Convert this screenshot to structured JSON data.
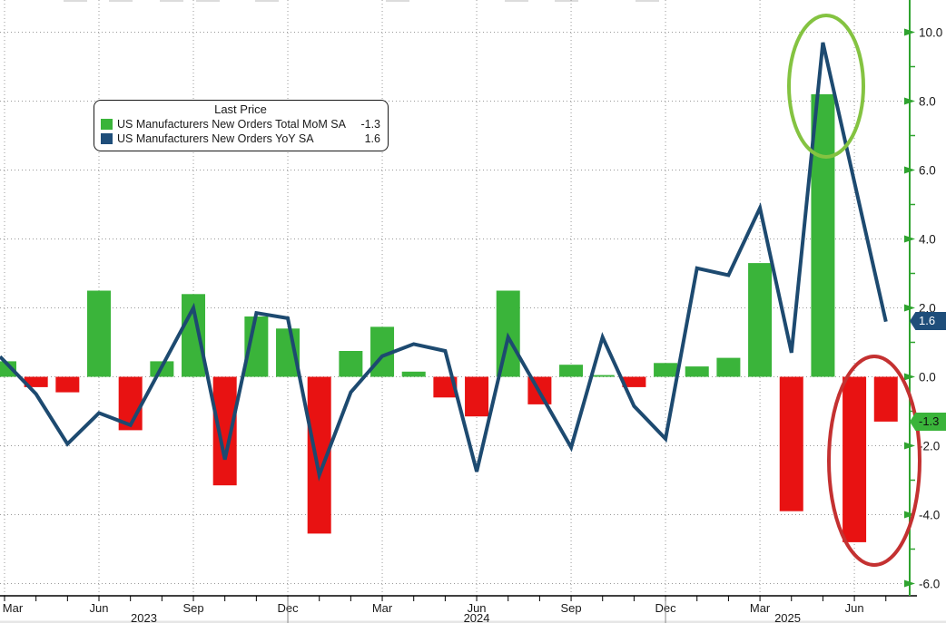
{
  "chart_data": {
    "type": "bar+line",
    "title": "",
    "months": [
      "Mar 2023",
      "Apr 2023",
      "May 2023",
      "Jun 2023",
      "Jul 2023",
      "Aug 2023",
      "Sep 2023",
      "Oct 2023",
      "Nov 2023",
      "Dec 2023",
      "Jan 2024",
      "Feb 2024",
      "Mar 2024",
      "Apr 2024",
      "May 2024",
      "Jun 2024",
      "Jul 2024",
      "Aug 2024",
      "Sep 2024",
      "Oct 2024",
      "Nov 2024",
      "Dec 2024",
      "Jan 2025",
      "Feb 2025",
      "Mar 2025",
      "Apr 2025",
      "May 2025",
      "Jun 2025",
      "Jul 2025"
    ],
    "series": [
      {
        "name": "US Manufacturers New Orders Total MoM SA",
        "type": "bar",
        "last_price": -1.3,
        "color_positive": "#3ab43a",
        "color_negative": "#e81212",
        "values": [
          0.45,
          -0.3,
          -0.45,
          2.5,
          -1.55,
          0.45,
          2.4,
          -3.15,
          1.75,
          1.4,
          -4.55,
          0.75,
          1.45,
          0.15,
          -0.6,
          -1.15,
          2.5,
          -0.8,
          0.35,
          0.05,
          -0.3,
          0.4,
          0.3,
          0.55,
          3.3,
          -3.9,
          8.2,
          -4.8,
          -1.3
        ]
      },
      {
        "name": "US Manufacturers New Orders YoY SA",
        "type": "line",
        "last_price": 1.6,
        "color": "#1d4a70",
        "values": [
          0.45,
          -0.5,
          -1.95,
          -1.05,
          -1.4,
          0.3,
          2.0,
          -2.4,
          1.85,
          1.7,
          -2.85,
          -0.45,
          0.6,
          0.95,
          0.75,
          -2.75,
          1.15,
          -0.45,
          -2.05,
          1.15,
          -0.85,
          -1.8,
          3.15,
          2.95,
          4.9,
          0.7,
          9.7,
          5.65,
          1.6
        ]
      }
    ],
    "y_axis": {
      "ticks": [
        "10.0",
        "8.0",
        "6.0",
        "4.0",
        "2.0",
        "0.0",
        "-2.0",
        "-4.0",
        "-6.0"
      ],
      "tick_values": [
        10,
        8,
        6,
        4,
        2,
        0,
        -2,
        -4,
        -6
      ],
      "minor_tick_values": [
        9,
        7,
        5,
        3,
        1,
        -1,
        -3,
        -5
      ],
      "range": [
        -6.4,
        10.9
      ],
      "axis_color": "#2fa32f",
      "label_color": "#1a1a1a",
      "grid": true
    },
    "x_axis": {
      "year_labels": [
        "2023",
        "2024",
        "2025"
      ],
      "tick_every_months": 1,
      "label_every_months": 3,
      "axis_color": "#000000"
    },
    "legend_position": "top-left"
  },
  "legend": {
    "title": "Last Price",
    "rows": [
      {
        "label": "US Manufacturers New Orders Total MoM SA",
        "value": "-1.3",
        "swatch": "#3ab43a"
      },
      {
        "label": "US Manufacturers New Orders YoY SA",
        "value": "1.6",
        "swatch": "#1f4e7a"
      }
    ]
  },
  "badges": {
    "yoy": {
      "text": "1.6",
      "bg": "#1f4e7a",
      "fg": "#ffffff"
    },
    "mom": {
      "text": "-1.3",
      "bg": "#3ab43a",
      "fg": "#111111"
    }
  },
  "annotations": [
    {
      "shape": "ellipse",
      "meaning": "highlight-may-2025-spike",
      "color": "#84c341"
    },
    {
      "shape": "ellipse",
      "meaning": "highlight-jun-jul-2025-drop",
      "color": "#c43131"
    }
  ]
}
